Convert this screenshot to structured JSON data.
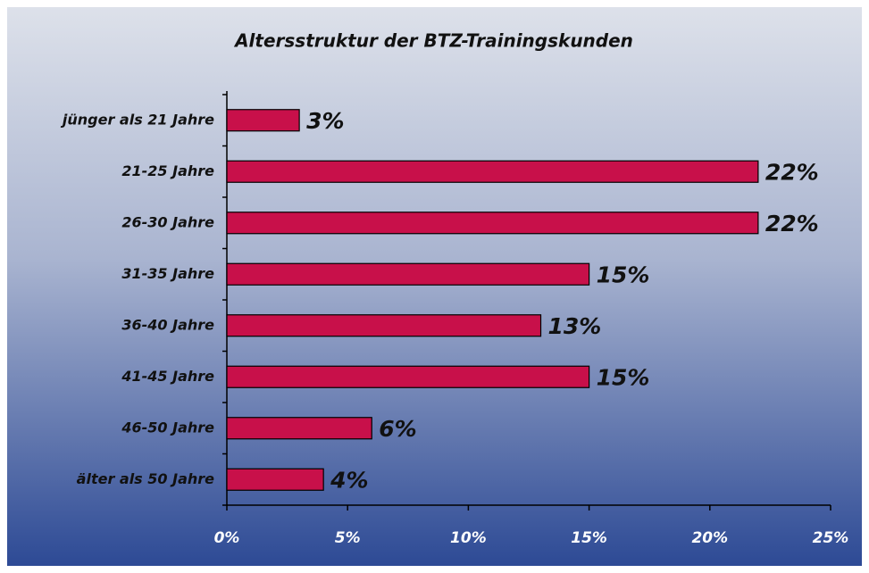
{
  "chart_data": {
    "type": "barh",
    "title": "Altersstruktur der BTZ-Trainingskunden",
    "categories": [
      "jünger als 21 Jahre",
      "21-25 Jahre",
      "26-30 Jahre",
      "31-35 Jahre",
      "36-40 Jahre",
      "41-45 Jahre",
      "46-50 Jahre",
      "älter als 50 Jahre"
    ],
    "values": [
      3,
      22,
      22,
      15,
      13,
      15,
      6,
      4
    ],
    "value_labels": [
      "3%",
      "22%",
      "22%",
      "15%",
      "13%",
      "15%",
      "6%",
      "4%"
    ],
    "color": "#c8104a",
    "xlim": [
      0,
      25
    ],
    "xticks": [
      {
        "value": 0,
        "label": "0%"
      },
      {
        "value": 5,
        "label": "5%"
      },
      {
        "value": 10,
        "label": "10%"
      },
      {
        "value": 15,
        "label": "15%"
      },
      {
        "value": 20,
        "label": "20%"
      },
      {
        "value": 25,
        "label": "25%"
      }
    ],
    "grid": false
  }
}
